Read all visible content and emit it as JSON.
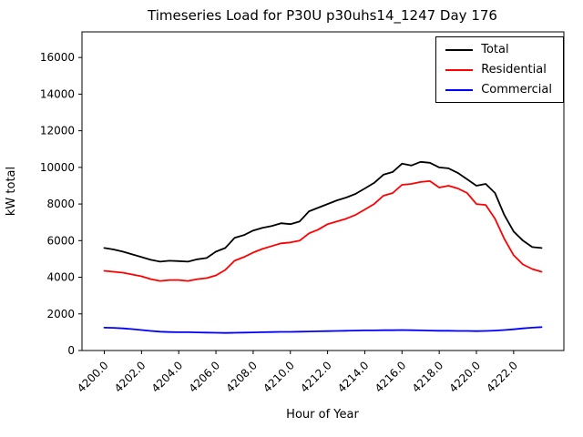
{
  "chart_data": {
    "type": "line",
    "title": "Timeseries Load for P30U p30uhs14_1247  Day 176",
    "xlabel": "Hour of Year",
    "ylabel": "kW total",
    "xlim": [
      4198.8,
      4224.7
    ],
    "ylim": [
      0,
      17400
    ],
    "grid": false,
    "legend_position": "upper right",
    "yticks": [
      0,
      2000,
      4000,
      6000,
      8000,
      10000,
      12000,
      14000,
      16000
    ],
    "xticks": [
      4200,
      4202,
      4204,
      4206,
      4208,
      4210,
      4212,
      4214,
      4216,
      4218,
      4220,
      4222
    ],
    "xtick_labels": [
      "4200.0",
      "4202.0",
      "4204.0",
      "4206.0",
      "4208.0",
      "4210.0",
      "4212.0",
      "4214.0",
      "4216.0",
      "4218.0",
      "4220.0",
      "4222.0"
    ],
    "x": [
      4200.0,
      4200.5,
      4201.0,
      4201.5,
      4202.0,
      4202.5,
      4203.0,
      4203.5,
      4204.0,
      4204.5,
      4205.0,
      4205.5,
      4206.0,
      4206.5,
      4207.0,
      4207.5,
      4208.0,
      4208.5,
      4209.0,
      4209.5,
      4210.0,
      4210.5,
      4211.0,
      4211.5,
      4212.0,
      4212.5,
      4213.0,
      4213.5,
      4214.0,
      4214.5,
      4215.0,
      4215.5,
      4216.0,
      4216.5,
      4217.0,
      4217.5,
      4218.0,
      4218.5,
      4219.0,
      4219.5,
      4220.0,
      4220.5,
      4221.0,
      4221.5,
      4222.0,
      4222.5,
      4223.0,
      4223.5
    ],
    "series": [
      {
        "name": "Total",
        "color": "#000000",
        "values": [
          5600,
          5520,
          5400,
          5250,
          5100,
          4950,
          4850,
          4900,
          4880,
          4850,
          4980,
          5050,
          5400,
          5600,
          6150,
          6300,
          6550,
          6700,
          6800,
          6950,
          6900,
          7050,
          7600,
          7800,
          8000,
          8200,
          8350,
          8550,
          8850,
          9150,
          9600,
          9750,
          10200,
          10100,
          10300,
          10250,
          10000,
          9950,
          9700,
          9350,
          9000,
          9100,
          8600,
          7400,
          6500,
          6000,
          5650,
          5600
        ]
      },
      {
        "name": "Residential",
        "color": "#ff0000",
        "values": [
          4350,
          4300,
          4250,
          4150,
          4050,
          3900,
          3800,
          3850,
          3850,
          3800,
          3900,
          3950,
          4100,
          4400,
          4900,
          5100,
          5350,
          5550,
          5700,
          5850,
          5900,
          6000,
          6400,
          6600,
          6900,
          7050,
          7200,
          7400,
          7700,
          8000,
          8450,
          8600,
          9050,
          9100,
          9200,
          9250,
          8900,
          9000,
          8850,
          8600,
          8000,
          7950,
          7200,
          6100,
          5200,
          4700,
          4450,
          4300
        ]
      },
      {
        "name": "Commercial",
        "color": "#0000ff",
        "values": [
          1250,
          1240,
          1210,
          1170,
          1120,
          1070,
          1030,
          1010,
          1000,
          1000,
          990,
          980,
          970,
          960,
          970,
          980,
          990,
          1000,
          1010,
          1020,
          1020,
          1030,
          1040,
          1050,
          1060,
          1070,
          1080,
          1090,
          1100,
          1100,
          1110,
          1110,
          1120,
          1110,
          1100,
          1090,
          1080,
          1080,
          1070,
          1070,
          1060,
          1070,
          1090,
          1120,
          1160,
          1210,
          1250,
          1280
        ]
      }
    ]
  }
}
